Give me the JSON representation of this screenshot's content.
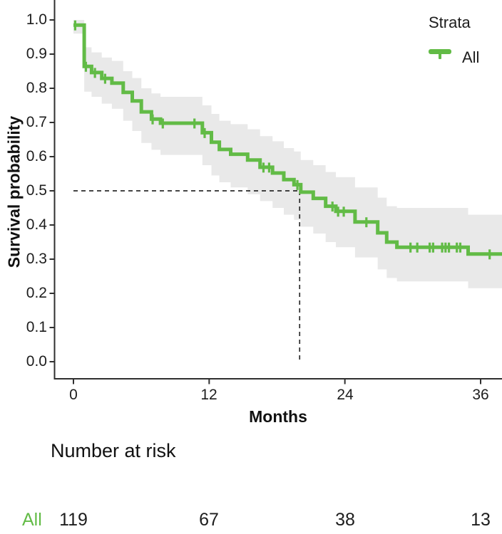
{
  "chart_data": {
    "type": "line",
    "subtype": "kaplan_meier_survival_step",
    "title": "",
    "xlabel": "Months",
    "ylabel": "Survival probability",
    "xlim": [
      -1.7,
      38
    ],
    "ylim": [
      0,
      1.05
    ],
    "grid": false,
    "x_ticks": [
      0,
      12,
      24,
      36
    ],
    "x_tick_labels": [
      "0",
      "12",
      "24",
      "36"
    ],
    "y_ticks": [
      1.0,
      0.9,
      0.8,
      0.7,
      0.6,
      0.5,
      0.4,
      0.3,
      0.2,
      0.1,
      0.0
    ],
    "y_tick_labels": [
      "1.0",
      "0.9",
      "0.8",
      "0.7",
      "0.6",
      "0.5",
      "0.4",
      "0.3",
      "0.2",
      "0.1",
      "0.0"
    ],
    "legend": {
      "title": "Strata",
      "position": "top-right",
      "entries": [
        {
          "label": "All",
          "color": "#62bb46"
        }
      ]
    },
    "median_annotation": {
      "time_months": 20,
      "survival": 0.5,
      "style": "dashed",
      "color": "#2b2b2b"
    },
    "series": [
      {
        "name": "All",
        "color": "#62bb46",
        "ci_color": "#e9e9e9",
        "steps": [
          [
            0,
            0.985
          ],
          [
            0.95,
            0.864
          ],
          [
            1.6,
            0.846
          ],
          [
            2.5,
            0.829
          ],
          [
            3.4,
            0.815
          ],
          [
            4.4,
            0.788
          ],
          [
            5.2,
            0.763
          ],
          [
            6.0,
            0.731
          ],
          [
            6.9,
            0.71
          ],
          [
            7.7,
            0.698
          ],
          [
            11.4,
            0.67
          ],
          [
            12.2,
            0.642
          ],
          [
            12.9,
            0.621
          ],
          [
            13.9,
            0.607
          ],
          [
            15.4,
            0.59
          ],
          [
            16.5,
            0.569
          ],
          [
            17.6,
            0.552
          ],
          [
            18.6,
            0.533
          ],
          [
            19.5,
            0.518
          ],
          [
            20.1,
            0.496
          ],
          [
            21.2,
            0.478
          ],
          [
            22.3,
            0.455
          ],
          [
            23.2,
            0.44
          ],
          [
            24.9,
            0.409
          ],
          [
            26.9,
            0.377
          ],
          [
            27.7,
            0.35
          ],
          [
            28.6,
            0.335
          ],
          [
            34.9,
            0.315
          ],
          [
            37.9,
            0.315
          ]
        ],
        "censors": [
          [
            0.15,
            0.985
          ],
          [
            1.1,
            0.864
          ],
          [
            1.9,
            0.846
          ],
          [
            2.8,
            0.829
          ],
          [
            7.0,
            0.71
          ],
          [
            7.9,
            0.698
          ],
          [
            10.7,
            0.698
          ],
          [
            11.6,
            0.67
          ],
          [
            16.8,
            0.569
          ],
          [
            17.3,
            0.569
          ],
          [
            19.8,
            0.518
          ],
          [
            22.9,
            0.455
          ],
          [
            23.4,
            0.44
          ],
          [
            23.9,
            0.44
          ],
          [
            25.9,
            0.409
          ],
          [
            29.8,
            0.335
          ],
          [
            30.4,
            0.335
          ],
          [
            31.5,
            0.335
          ],
          [
            31.8,
            0.335
          ],
          [
            32.6,
            0.335
          ],
          [
            32.9,
            0.335
          ],
          [
            33.2,
            0.335
          ],
          [
            33.9,
            0.335
          ],
          [
            34.2,
            0.335
          ],
          [
            36.8,
            0.315
          ]
        ],
        "ci_upper": [
          [
            0,
            1.0
          ],
          [
            0.95,
            0.92
          ],
          [
            1.6,
            0.905
          ],
          [
            2.5,
            0.89
          ],
          [
            3.4,
            0.88
          ],
          [
            4.4,
            0.85
          ],
          [
            5.2,
            0.83
          ],
          [
            6.0,
            0.8
          ],
          [
            6.9,
            0.785
          ],
          [
            7.7,
            0.775
          ],
          [
            11.4,
            0.75
          ],
          [
            12.2,
            0.725
          ],
          [
            12.9,
            0.705
          ],
          [
            13.9,
            0.695
          ],
          [
            15.4,
            0.68
          ],
          [
            16.5,
            0.66
          ],
          [
            17.6,
            0.645
          ],
          [
            18.6,
            0.625
          ],
          [
            19.5,
            0.615
          ],
          [
            20.1,
            0.59
          ],
          [
            21.2,
            0.575
          ],
          [
            22.3,
            0.555
          ],
          [
            23.2,
            0.54
          ],
          [
            24.9,
            0.51
          ],
          [
            26.9,
            0.48
          ],
          [
            27.7,
            0.455
          ],
          [
            28.6,
            0.45
          ],
          [
            34.9,
            0.43
          ],
          [
            37.9,
            0.43
          ]
        ],
        "ci_lower": [
          [
            0,
            0.96
          ],
          [
            0.95,
            0.79
          ],
          [
            1.6,
            0.775
          ],
          [
            2.5,
            0.755
          ],
          [
            3.4,
            0.74
          ],
          [
            4.4,
            0.705
          ],
          [
            5.2,
            0.675
          ],
          [
            6.0,
            0.64
          ],
          [
            6.9,
            0.62
          ],
          [
            7.7,
            0.605
          ],
          [
            11.4,
            0.575
          ],
          [
            12.2,
            0.545
          ],
          [
            12.9,
            0.525
          ],
          [
            13.9,
            0.51
          ],
          [
            15.4,
            0.49
          ],
          [
            16.5,
            0.47
          ],
          [
            17.6,
            0.45
          ],
          [
            18.6,
            0.43
          ],
          [
            19.5,
            0.415
          ],
          [
            20.1,
            0.395
          ],
          [
            21.2,
            0.375
          ],
          [
            22.3,
            0.35
          ],
          [
            23.2,
            0.335
          ],
          [
            24.9,
            0.305
          ],
          [
            26.9,
            0.27
          ],
          [
            27.7,
            0.245
          ],
          [
            28.6,
            0.235
          ],
          [
            34.9,
            0.215
          ],
          [
            37.9,
            0.215
          ]
        ]
      }
    ],
    "risk_table": {
      "title": "Number at risk",
      "time_points": [
        0,
        12,
        24,
        36
      ],
      "rows": [
        {
          "label": "All",
          "color": "#62bb46",
          "counts": [
            119,
            67,
            38,
            13
          ]
        }
      ]
    }
  }
}
